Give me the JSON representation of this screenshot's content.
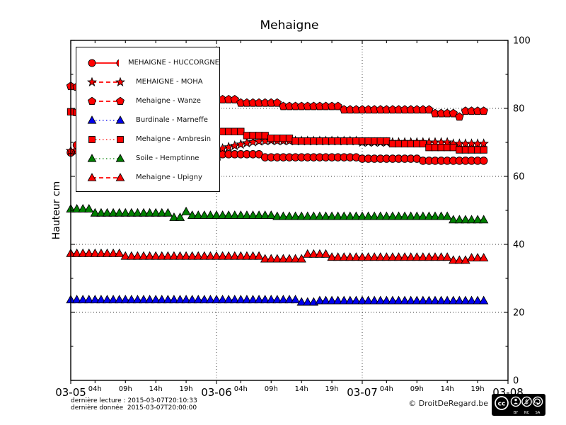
{
  "title": "Mehaigne",
  "footer": {
    "line1": "dernière lecture : 2015-03-07T20:10:33",
    "line2": "dernière donnée  2015-03-07T20:00:00",
    "copyright": "© DroitDeRegard.be",
    "badge_labels": [
      "BY",
      "NC",
      "SA"
    ],
    "badge_cc_text": "cc"
  },
  "chart_data": {
    "type": "line",
    "title": "Mehaigne",
    "xlabel": "",
    "ylabel": "Hauteur cm",
    "ylim": [
      0,
      100
    ],
    "yticks_labeled": [
      0,
      20,
      40,
      60,
      80,
      100
    ],
    "yticks_minor": [
      10,
      30,
      50,
      70,
      90
    ],
    "grid_h": [
      20,
      40,
      60,
      80
    ],
    "grid_v_hours": [
      24,
      48
    ],
    "x_total_hours": 72,
    "x_days": [
      {
        "label": "03-05",
        "hour": 0
      },
      {
        "label": "03-06",
        "hour": 24
      },
      {
        "label": "03-07",
        "hour": 48
      },
      {
        "label": "03-08",
        "hour": 72
      }
    ],
    "x_hour_ticks": [
      {
        "label": "04h",
        "hour": 4
      },
      {
        "label": "09h",
        "hour": 9
      },
      {
        "label": "14h",
        "hour": 14
      },
      {
        "label": "19h",
        "hour": 19
      },
      {
        "label": "04h",
        "hour": 28
      },
      {
        "label": "09h",
        "hour": 33
      },
      {
        "label": "14h",
        "hour": 38
      },
      {
        "label": "19h",
        "hour": 43
      },
      {
        "label": "04h",
        "hour": 52
      },
      {
        "label": "09h",
        "hour": 57
      },
      {
        "label": "14h",
        "hour": 62
      },
      {
        "label": "19h",
        "hour": 67
      }
    ],
    "legend_position": "upper left",
    "series": [
      {
        "name": "MEHAIGNE - HUCCORGNE",
        "color": "#ff0000",
        "marker": "circle",
        "line": "solid",
        "values": [
          67.0,
          69.2,
          69.0,
          68.9,
          68.7,
          68.6,
          68.4,
          68.3,
          68.1,
          68.0,
          67.8,
          67.7,
          67.5,
          67.4,
          67.2,
          67.1,
          66.9,
          66.8,
          66.6,
          66.5,
          66.3,
          66.2,
          66.1,
          66.0,
          65.0,
          66.5,
          66.5,
          66.5,
          66.5,
          66.5,
          66.5,
          66.5,
          65.6,
          65.6,
          65.6,
          65.6,
          65.6,
          65.6,
          65.6,
          65.6,
          65.6,
          65.6,
          65.6,
          65.6,
          65.6,
          65.6,
          65.6,
          65.6,
          65.2,
          65.2,
          65.2,
          65.2,
          65.2,
          65.2,
          65.2,
          65.2,
          65.2,
          65.2,
          64.6,
          64.6,
          64.6,
          64.6,
          64.6,
          64.6,
          64.6,
          64.6,
          64.6,
          64.6,
          64.6
        ]
      },
      {
        "name": "MEHAIGNE - MOHA",
        "color": "#ff0000",
        "marker": "star",
        "line": "dashed",
        "values": [
          67.5,
          67.5,
          67.5,
          67.5,
          67.5,
          67.5,
          67.5,
          67.5,
          67.5,
          67.5,
          67.5,
          67.5,
          67.5,
          67.5,
          67.5,
          67.5,
          67.5,
          67.5,
          67.5,
          67.5,
          67.5,
          67.5,
          67.5,
          67.5,
          67.8,
          68.2,
          68.6,
          69.0,
          69.4,
          69.8,
          70.1,
          70.3,
          70.4,
          70.5,
          70.4,
          70.4,
          70.4,
          70.4,
          70.4,
          70.4,
          70.4,
          70.4,
          70.4,
          70.4,
          70.4,
          70.4,
          70.4,
          70.4,
          70.0,
          70.0,
          70.0,
          70.0,
          70.0,
          70.0,
          70.0,
          70.0,
          70.0,
          70.0,
          70.0,
          70.0,
          70.0,
          70.0,
          70.0,
          69.6,
          69.6,
          69.6,
          69.6,
          69.6,
          69.6
        ]
      },
      {
        "name": "Mehaigne - Wanze",
        "color": "#ff0000",
        "marker": "pentagon",
        "line": "dashed",
        "values": [
          86.5,
          86.3,
          86.2,
          86.0,
          85.9,
          85.7,
          85.6,
          85.4,
          85.3,
          85.1,
          85.0,
          84.8,
          84.7,
          84.5,
          84.4,
          84.2,
          84.1,
          83.9,
          83.8,
          83.6,
          83.5,
          83.3,
          83.2,
          83.0,
          82.6,
          82.6,
          82.6,
          82.6,
          81.6,
          81.6,
          81.6,
          81.6,
          81.6,
          81.6,
          81.6,
          80.6,
          80.6,
          80.6,
          80.6,
          80.6,
          80.6,
          80.6,
          80.6,
          80.6,
          80.6,
          79.6,
          79.6,
          79.6,
          79.6,
          79.6,
          79.6,
          79.6,
          79.6,
          79.6,
          79.6,
          79.6,
          79.6,
          79.6,
          79.6,
          79.6,
          78.5,
          78.5,
          78.5,
          78.5,
          77.5,
          79.2,
          79.2,
          79.2,
          79.2
        ]
      },
      {
        "name": "Burdinale - Marneffe",
        "color": "#0000ee",
        "marker": "triangle",
        "line": "dotted",
        "values": [
          23.7,
          23.7,
          23.7,
          23.7,
          23.7,
          23.7,
          23.7,
          23.7,
          23.7,
          23.7,
          23.7,
          23.7,
          23.7,
          23.7,
          23.7,
          23.7,
          23.7,
          23.7,
          23.7,
          23.7,
          23.7,
          23.7,
          23.7,
          23.7,
          23.7,
          23.7,
          23.7,
          23.7,
          23.7,
          23.7,
          23.7,
          23.7,
          23.7,
          23.7,
          23.7,
          23.7,
          23.7,
          23.7,
          23.0,
          23.0,
          23.0,
          23.4,
          23.4,
          23.4,
          23.4,
          23.4,
          23.4,
          23.4,
          23.4,
          23.4,
          23.4,
          23.4,
          23.4,
          23.4,
          23.4,
          23.4,
          23.4,
          23.4,
          23.4,
          23.4,
          23.4,
          23.4,
          23.4,
          23.4,
          23.4,
          23.4,
          23.4,
          23.4,
          23.4
        ]
      },
      {
        "name": "Mehaigne - Ambresin",
        "color": "#ff0000",
        "marker": "square",
        "line": "dotted",
        "values": [
          79.0,
          78.8,
          78.5,
          78.3,
          78.0,
          77.8,
          77.6,
          77.3,
          77.1,
          76.8,
          76.6,
          76.4,
          76.1,
          75.9,
          75.6,
          75.4,
          75.2,
          74.9,
          74.7,
          74.4,
          74.2,
          74.0,
          73.7,
          73.5,
          73.2,
          73.2,
          73.2,
          73.2,
          73.2,
          72.0,
          72.0,
          72.0,
          72.0,
          71.2,
          71.2,
          71.2,
          71.2,
          70.4,
          70.4,
          70.4,
          70.4,
          70.4,
          70.4,
          70.4,
          70.4,
          70.4,
          70.4,
          70.4,
          70.4,
          70.4,
          70.4,
          70.4,
          70.4,
          69.6,
          69.6,
          69.6,
          69.6,
          69.6,
          69.6,
          68.5,
          68.5,
          68.5,
          68.5,
          68.5,
          67.8,
          67.8,
          67.8,
          67.8,
          67.8
        ]
      },
      {
        "name": "Soile - Hemptinne",
        "color": "#008000",
        "marker": "triangle",
        "line": "dotted",
        "values": [
          50.4,
          50.4,
          50.4,
          50.4,
          49.2,
          49.2,
          49.2,
          49.2,
          49.2,
          49.2,
          49.2,
          49.2,
          49.2,
          49.2,
          49.2,
          49.2,
          49.2,
          47.9,
          47.9,
          49.6,
          48.5,
          48.5,
          48.5,
          48.5,
          48.5,
          48.5,
          48.5,
          48.5,
          48.5,
          48.5,
          48.5,
          48.5,
          48.5,
          48.5,
          48.2,
          48.2,
          48.2,
          48.2,
          48.2,
          48.2,
          48.2,
          48.2,
          48.2,
          48.2,
          48.2,
          48.2,
          48.2,
          48.2,
          48.2,
          48.2,
          48.2,
          48.2,
          48.2,
          48.2,
          48.2,
          48.2,
          48.2,
          48.2,
          48.2,
          48.2,
          48.2,
          48.2,
          48.2,
          47.2,
          47.2,
          47.2,
          47.2,
          47.2,
          47.2
        ]
      },
      {
        "name": "Mehaigne - Upigny",
        "color": "#ff0000",
        "marker": "triangle",
        "line": "dashed",
        "values": [
          37.3,
          37.3,
          37.3,
          37.3,
          37.3,
          37.3,
          37.3,
          37.3,
          37.3,
          36.5,
          36.5,
          36.5,
          36.5,
          36.5,
          36.5,
          36.5,
          36.5,
          36.5,
          36.5,
          36.5,
          36.5,
          36.5,
          36.5,
          36.5,
          36.5,
          36.5,
          36.5,
          36.5,
          36.5,
          36.5,
          36.5,
          36.5,
          35.7,
          35.7,
          35.7,
          35.7,
          35.7,
          35.7,
          35.7,
          37.1,
          37.1,
          37.1,
          37.1,
          36.2,
          36.2,
          36.2,
          36.2,
          36.2,
          36.2,
          36.2,
          36.2,
          36.2,
          36.2,
          36.2,
          36.2,
          36.2,
          36.2,
          36.2,
          36.2,
          36.2,
          36.2,
          36.2,
          36.2,
          35.3,
          35.3,
          35.3,
          36.0,
          36.0,
          36.0
        ]
      }
    ]
  }
}
